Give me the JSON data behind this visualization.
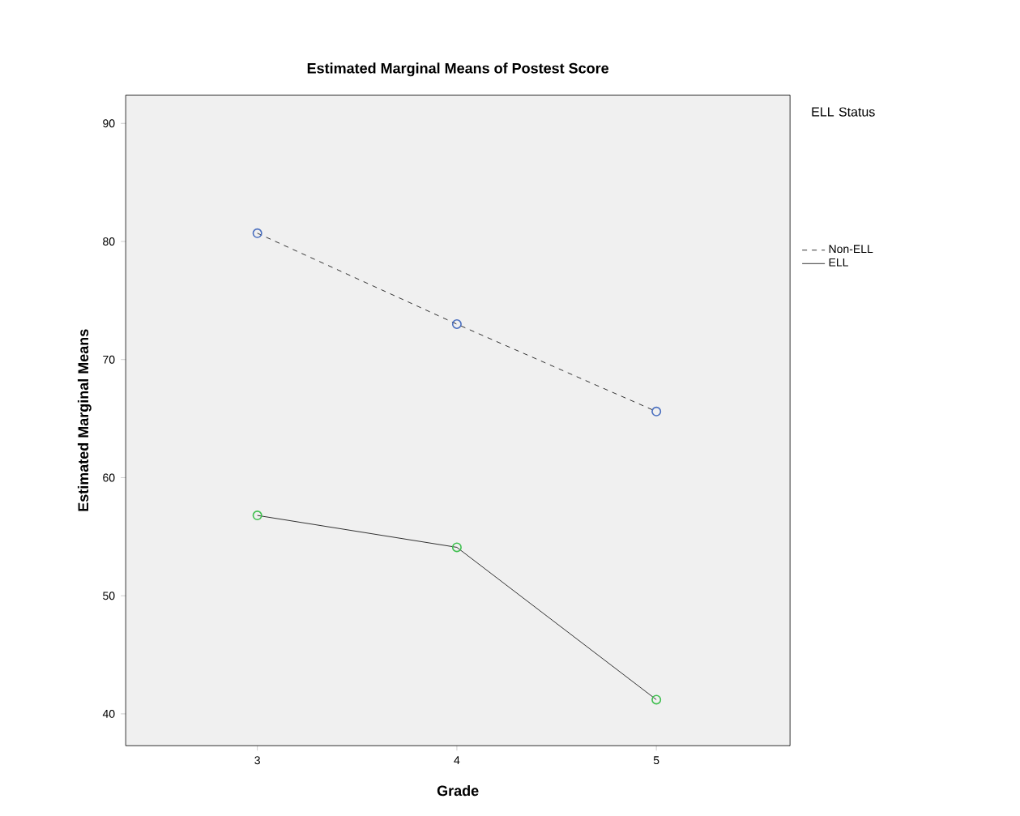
{
  "chart_data": {
    "type": "line",
    "title": "Estimated Marginal Means of Postest Score",
    "xlabel": "Grade",
    "ylabel": "Estimated Marginal Means",
    "legend_title": "ELL Status",
    "legend": "right",
    "marker": "circle",
    "x": [
      3,
      4,
      5
    ],
    "xlim": [
      2.34,
      5.67
    ],
    "xticks": [
      3,
      4,
      5
    ],
    "ylim": [
      37.3,
      92.4
    ],
    "yticks": [
      40,
      50,
      60,
      70,
      80,
      90
    ],
    "series": [
      {
        "name": "Non-ELL",
        "color": "#4a6fbf",
        "line_style": "dashed",
        "values": [
          80.7,
          73.0,
          65.6
        ]
      },
      {
        "name": "ELL",
        "color": "#3fbf4f",
        "line_style": "solid",
        "values": [
          56.8,
          54.1,
          41.2
        ]
      }
    ]
  }
}
